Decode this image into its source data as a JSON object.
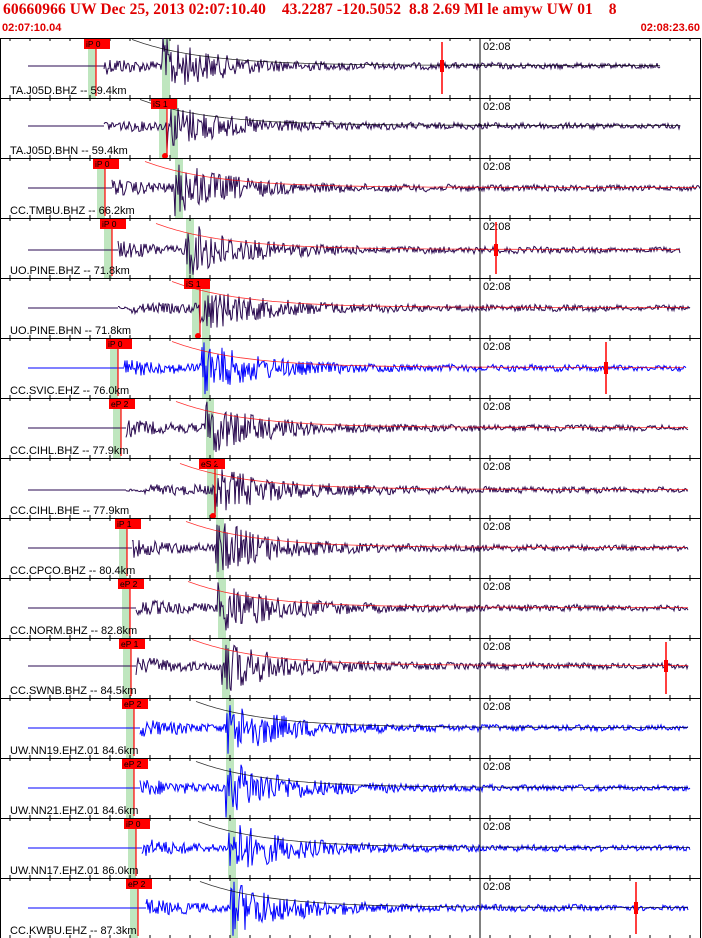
{
  "header": {
    "title": "60660966 UW Dec 25, 2013 02:07:10.40    43.2287 -120.5052  8.8 2.69 Ml le amyw UW 01    8",
    "start_time": "02:07:10.04",
    "end_time": "02:08:23.60"
  },
  "time_mark_label": "02:08",
  "colors": {
    "frame": "#000000",
    "trace_dark": "#2a0a50",
    "trace_blue": "#0000ff",
    "pick_red": "#ff0000",
    "green_band": "#bfe6bf",
    "header_text": "#e00000"
  },
  "traces": [
    {
      "label": "TA.J05D.BHZ -- 59.4km",
      "pick": "iP 0",
      "color": "dark"
    },
    {
      "label": "TA.J05D.BHN -- 59.4km",
      "pick": "iS 1",
      "color": "dark"
    },
    {
      "label": "CC.TMBU.BHZ -- 66.2km",
      "pick": "iP 0",
      "color": "dark"
    },
    {
      "label": "UO.PINE.BHZ -- 71.8km",
      "pick": "iP 0",
      "color": "dark"
    },
    {
      "label": "UO.PINE.BHN -- 71.8km",
      "pick": "iS 1",
      "color": "dark"
    },
    {
      "label": "CC.SVIC.EHZ -- 76.0km",
      "pick": "iP 0",
      "color": "blue"
    },
    {
      "label": "CC.CIHL.BHZ -- 77.9km",
      "pick": "eP 2",
      "color": "dark"
    },
    {
      "label": "CC.CIHL.BHE -- 77.9km",
      "pick": "eS 2",
      "color": "dark"
    },
    {
      "label": "CC.CPCO.BHZ -- 80.4km",
      "pick": "iP 1",
      "color": "dark"
    },
    {
      "label": "CC.NORM.BHZ -- 82.8km",
      "pick": "eP 2",
      "color": "dark"
    },
    {
      "label": "CC.SWNB.BHZ -- 84.5km",
      "pick": "eP 1",
      "color": "dark"
    },
    {
      "label": "UW.NN19.EHZ.01 84.6km",
      "pick": "eP 2",
      "color": "blue"
    },
    {
      "label": "UW.NN21.EHZ.01 84.6km",
      "pick": "eP 2",
      "color": "blue"
    },
    {
      "label": "UW.NN17.EHZ.01 86.0km",
      "pick": "iP 0",
      "color": "blue"
    },
    {
      "label": "CC.KWBU.EHZ -- 87.3km",
      "pick": "eP 2",
      "color": "blue"
    }
  ]
}
